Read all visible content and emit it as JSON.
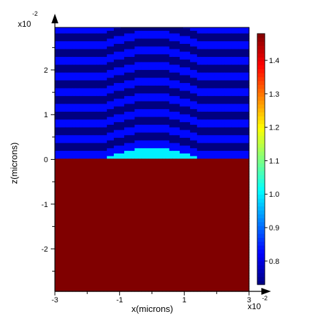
{
  "chart_data": {
    "type": "heatmap",
    "title": "",
    "xlabel": "x(microns)",
    "ylabel": "z(microns)",
    "x_multiplier": {
      "base": "x10",
      "exponent": "-2"
    },
    "z_multiplier": {
      "base": "x10",
      "exponent": "-2"
    },
    "xlim": [
      -3,
      3
    ],
    "zlim": [
      -2.95,
      2.95
    ],
    "x_ticks": [
      -3,
      -1,
      1,
      3
    ],
    "z_ticks": [
      -2,
      -1,
      0,
      1,
      2
    ],
    "colorbar": {
      "ticks": [
        0.8,
        0.9,
        1.0,
        1.1,
        1.2,
        1.3,
        1.4
      ],
      "tick_labels": [
        "0.8",
        "0.9",
        "1.0",
        "1.1",
        "1.2",
        "1.3",
        "1.4"
      ],
      "range": [
        0.73,
        1.48
      ],
      "colormap": "jet"
    },
    "regions": {
      "substrate": {
        "z_max": 0,
        "value": 1.48
      },
      "bump": {
        "value": 1.0,
        "peak_height": 0.27,
        "half_width": 1.5
      },
      "multilayer": {
        "bilayer_period": 0.35,
        "high_layer_value": 0.83,
        "low_layer_value": 0.73,
        "bump_amplitude": 0.27,
        "bump_half_width": 1.5
      }
    }
  }
}
